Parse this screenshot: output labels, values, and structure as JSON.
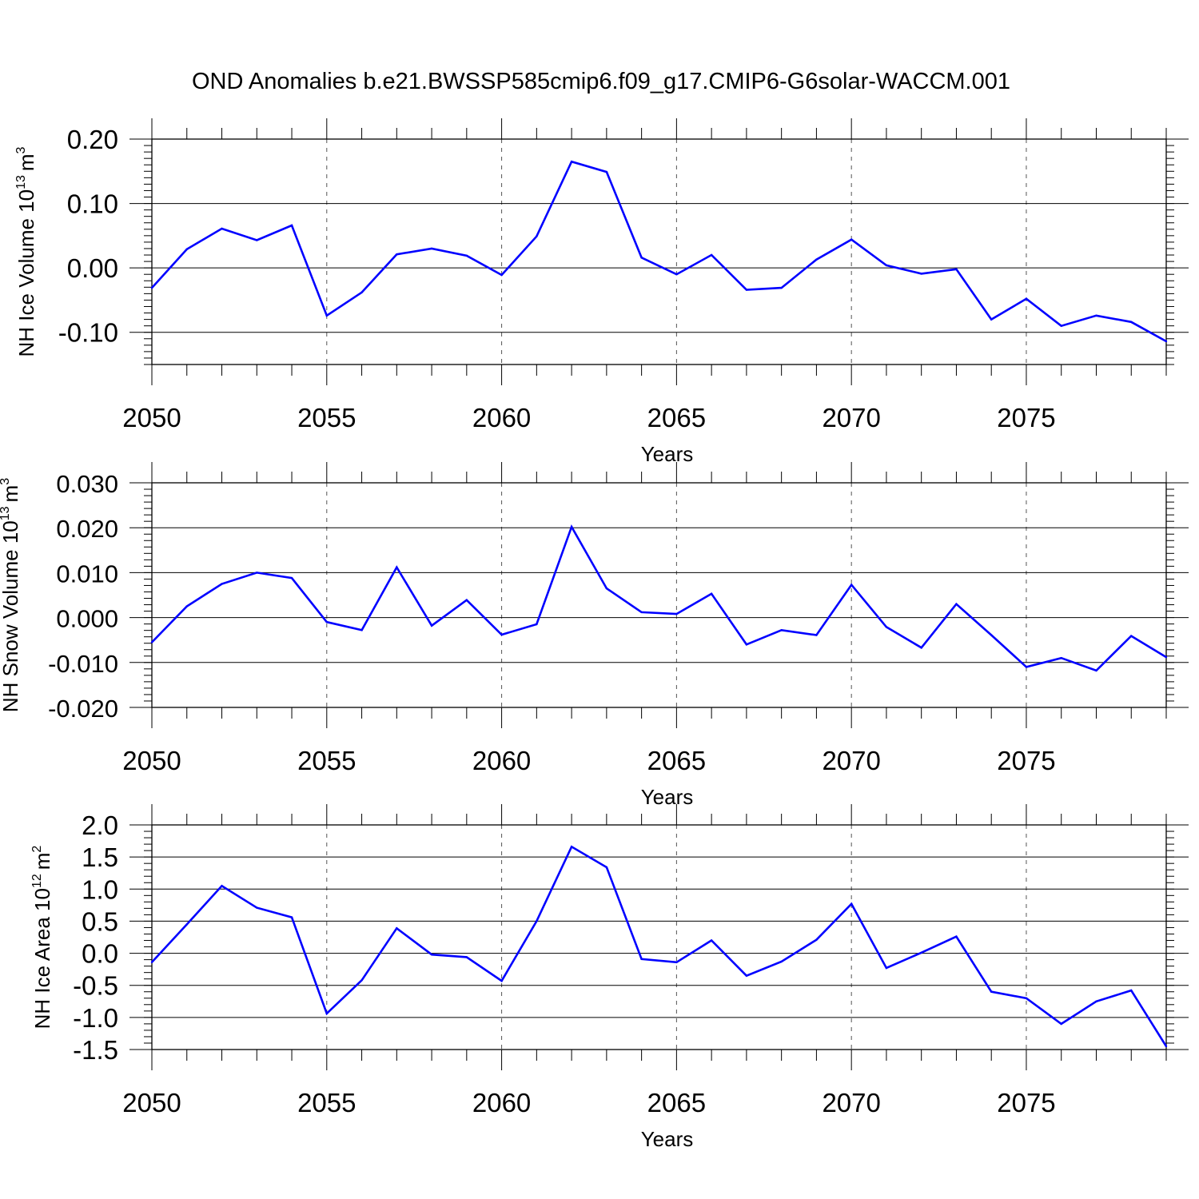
{
  "title": "OND Anomalies b.e21.BWSSP585cmip6.f09_g17.CMIP6-G6solar-WACCM.001",
  "style": {
    "line_color": "#0000ff",
    "axis_color": "#000000",
    "grid_color": "#555555"
  },
  "chart_data": [
    {
      "type": "line",
      "ylabel": "NH Ice Volume 10",
      "ylabel_exp": "13",
      "ylabel_unit": "m",
      "ylabel_unit_exp": "3",
      "xlabel": "Years",
      "xlim": [
        2050,
        2079
      ],
      "ylim": [
        -0.15,
        0.2
      ],
      "xticks": [
        2050,
        2055,
        2060,
        2065,
        2070,
        2075
      ],
      "xtick_labels": [
        "2050",
        "2055",
        "2060",
        "2065",
        "2070",
        "2075"
      ],
      "yticks": [
        0.2,
        0.1,
        0.0,
        -0.1
      ],
      "ytick_labels": [
        "0.20",
        "0.10",
        "0.00",
        "-0.10"
      ],
      "vertical_grid": true,
      "x": [
        2050,
        2051,
        2052,
        2053,
        2054,
        2055,
        2056,
        2057,
        2058,
        2059,
        2060,
        2061,
        2062,
        2063,
        2064,
        2065,
        2066,
        2067,
        2068,
        2069,
        2070,
        2071,
        2072,
        2073,
        2074,
        2075,
        2076,
        2077,
        2078,
        2079
      ],
      "values": [
        -0.031,
        0.029,
        0.061,
        0.043,
        0.066,
        -0.074,
        -0.038,
        0.021,
        0.03,
        0.019,
        -0.011,
        0.049,
        0.165,
        0.149,
        0.016,
        -0.01,
        0.02,
        -0.034,
        -0.031,
        0.013,
        0.044,
        0.004,
        -0.009,
        -0.002,
        -0.08,
        -0.048,
        -0.09,
        -0.074,
        -0.084,
        -0.114
      ]
    },
    {
      "type": "line",
      "ylabel": "NH Snow Volume 10",
      "ylabel_exp": "13",
      "ylabel_unit": "m",
      "ylabel_unit_exp": "3",
      "xlabel": "Years",
      "xlim": [
        2050,
        2079
      ],
      "ylim": [
        -0.02,
        0.03
      ],
      "xticks": [
        2050,
        2055,
        2060,
        2065,
        2070,
        2075
      ],
      "xtick_labels": [
        "2050",
        "2055",
        "2060",
        "2065",
        "2070",
        "2075"
      ],
      "yticks": [
        0.03,
        0.02,
        0.01,
        0.0,
        -0.01,
        -0.02
      ],
      "ytick_labels": [
        "0.030",
        "0.020",
        "0.010",
        "0.000",
        "-0.010",
        "-0.020"
      ],
      "vertical_grid": true,
      "x": [
        2050,
        2051,
        2052,
        2053,
        2054,
        2055,
        2056,
        2057,
        2058,
        2059,
        2060,
        2061,
        2062,
        2063,
        2064,
        2065,
        2066,
        2067,
        2068,
        2069,
        2070,
        2071,
        2072,
        2073,
        2074,
        2075,
        2076,
        2077,
        2078,
        2079
      ],
      "values": [
        -0.0055,
        0.0025,
        0.0075,
        0.01,
        0.0088,
        -0.001,
        -0.0028,
        0.0112,
        -0.0018,
        0.0039,
        -0.0038,
        -0.0015,
        0.0202,
        0.0065,
        0.0012,
        0.0008,
        0.0053,
        -0.006,
        -0.0028,
        -0.0039,
        0.0073,
        -0.0021,
        -0.0067,
        0.003,
        -0.0039,
        -0.011,
        -0.009,
        -0.0118,
        -0.0041,
        -0.0088
      ]
    },
    {
      "type": "line",
      "ylabel": "NH Ice Area 10",
      "ylabel_exp": "12",
      "ylabel_unit": "m",
      "ylabel_unit_exp": "2",
      "xlabel": "Years",
      "xlim": [
        2050,
        2079
      ],
      "ylim": [
        -1.5,
        2.0
      ],
      "xticks": [
        2050,
        2055,
        2060,
        2065,
        2070,
        2075
      ],
      "xtick_labels": [
        "2050",
        "2055",
        "2060",
        "2065",
        "2070",
        "2075"
      ],
      "yticks": [
        2.0,
        1.5,
        1.0,
        0.5,
        0.0,
        -0.5,
        -1.0,
        -1.5
      ],
      "ytick_labels": [
        "2.0",
        "1.5",
        "1.0",
        "0.5",
        "0.0",
        "-0.5",
        "-1.0",
        "-1.5"
      ],
      "vertical_grid": true,
      "x": [
        2050,
        2051,
        2052,
        2053,
        2054,
        2055,
        2056,
        2057,
        2058,
        2059,
        2060,
        2061,
        2062,
        2063,
        2064,
        2065,
        2066,
        2067,
        2068,
        2069,
        2070,
        2071,
        2072,
        2073,
        2074,
        2075,
        2076,
        2077,
        2078,
        2079
      ],
      "values": [
        -0.14,
        0.45,
        1.05,
        0.71,
        0.56,
        -0.94,
        -0.42,
        0.39,
        -0.02,
        -0.06,
        -0.43,
        0.5,
        1.66,
        1.34,
        -0.09,
        -0.14,
        0.2,
        -0.35,
        -0.13,
        0.21,
        0.77,
        -0.23,
        0.01,
        0.26,
        -0.6,
        -0.7,
        -1.1,
        -0.75,
        -0.58,
        -1.45
      ]
    }
  ]
}
